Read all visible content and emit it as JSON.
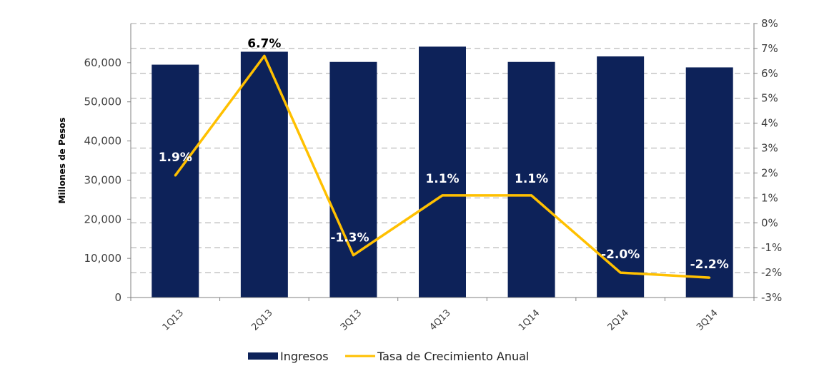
{
  "chart_data": {
    "type": "bar+line",
    "categories": [
      "1Q13",
      "2Q13",
      "3Q13",
      "4Q13",
      "1Q14",
      "2Q14",
      "3Q14"
    ],
    "series": [
      {
        "name": "Ingresos",
        "type": "bar",
        "axis": "left",
        "values": [
          59500,
          62800,
          60200,
          64100,
          60200,
          61600,
          58800
        ]
      },
      {
        "name": "Tasa de Crecimiento Anual",
        "type": "line",
        "axis": "right",
        "values": [
          1.9,
          6.7,
          -1.3,
          1.1,
          1.1,
          -2.0,
          -2.2
        ],
        "labels": [
          "1.9%",
          "6.7%",
          "-1.3%",
          "1.1%",
          "1.1%",
          "-2.0%",
          "-2.2%"
        ]
      }
    ],
    "ylabel": "Millones de Pesos",
    "ylim": [
      0,
      70000
    ],
    "yticks": [
      "0",
      "10,000",
      "20,000",
      "30,000",
      "40,000",
      "50,000",
      "60,000"
    ],
    "y2lim": [
      -3,
      8
    ],
    "y2ticks": [
      "-3%",
      "-2%",
      "-1%",
      "0%",
      "1%",
      "2%",
      "3%",
      "4%",
      "5%",
      "6%",
      "7%",
      "8%"
    ],
    "grid": true,
    "legend": "bottom-center",
    "colors": {
      "bar": "#0d2259",
      "line": "#ffc000",
      "grid": "#a6a6a6"
    }
  }
}
